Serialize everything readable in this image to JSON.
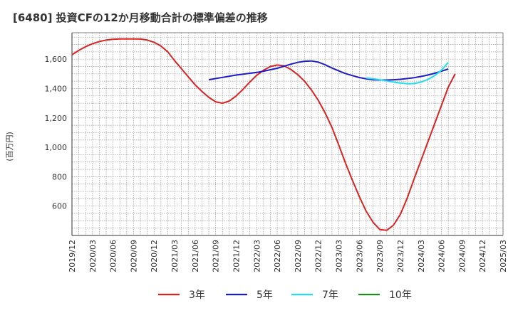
{
  "chart_data": {
    "type": "line",
    "title": "[6480]  投資CFの12か月移動合計の標準偏差の推移",
    "ylabel": "(百万円)",
    "xlabel": "",
    "ylim": [
      400,
      1780
    ],
    "yticks": [
      600,
      800,
      1000,
      1200,
      1400,
      1600
    ],
    "x_start": "2019-12",
    "x_end": "2025-03",
    "x_ticks": [
      "2019/12",
      "2020/03",
      "2020/06",
      "2020/09",
      "2020/12",
      "2021/03",
      "2021/06",
      "2021/09",
      "2021/12",
      "2022/03",
      "2022/06",
      "2022/09",
      "2022/12",
      "2023/03",
      "2023/06",
      "2023/09",
      "2023/12",
      "2024/03",
      "2024/06",
      "2024/09",
      "2024/12",
      "2025/03"
    ],
    "grid": true,
    "legend_position": "bottom",
    "series": [
      {
        "name": "3年",
        "color": "#dd2222",
        "points": [
          [
            "2019-12",
            1630
          ],
          [
            "2020-01",
            1660
          ],
          [
            "2020-02",
            1685
          ],
          [
            "2020-03",
            1705
          ],
          [
            "2020-04",
            1720
          ],
          [
            "2020-05",
            1730
          ],
          [
            "2020-06",
            1735
          ],
          [
            "2020-07",
            1738
          ],
          [
            "2020-08",
            1738
          ],
          [
            "2020-09",
            1738
          ],
          [
            "2020-10",
            1737
          ],
          [
            "2020-11",
            1730
          ],
          [
            "2020-12",
            1715
          ],
          [
            "2021-01",
            1690
          ],
          [
            "2021-02",
            1650
          ],
          [
            "2021-03",
            1590
          ],
          [
            "2021-04",
            1535
          ],
          [
            "2021-05",
            1480
          ],
          [
            "2021-06",
            1425
          ],
          [
            "2021-07",
            1380
          ],
          [
            "2021-08",
            1340
          ],
          [
            "2021-09",
            1310
          ],
          [
            "2021-10",
            1300
          ],
          [
            "2021-11",
            1315
          ],
          [
            "2021-12",
            1350
          ],
          [
            "2022-01",
            1395
          ],
          [
            "2022-02",
            1445
          ],
          [
            "2022-03",
            1490
          ],
          [
            "2022-04",
            1525
          ],
          [
            "2022-05",
            1550
          ],
          [
            "2022-06",
            1560
          ],
          [
            "2022-07",
            1555
          ],
          [
            "2022-08",
            1530
          ],
          [
            "2022-09",
            1495
          ],
          [
            "2022-10",
            1450
          ],
          [
            "2022-11",
            1390
          ],
          [
            "2022-12",
            1320
          ],
          [
            "2023-01",
            1235
          ],
          [
            "2023-02",
            1135
          ],
          [
            "2023-03",
            1015
          ],
          [
            "2023-04",
            890
          ],
          [
            "2023-05",
            775
          ],
          [
            "2023-06",
            665
          ],
          [
            "2023-07",
            565
          ],
          [
            "2023-08",
            490
          ],
          [
            "2023-09",
            440
          ],
          [
            "2023-10",
            435
          ],
          [
            "2023-11",
            470
          ],
          [
            "2023-12",
            545
          ],
          [
            "2024-01",
            655
          ],
          [
            "2024-02",
            785
          ],
          [
            "2024-03",
            910
          ],
          [
            "2024-04",
            1035
          ],
          [
            "2024-05",
            1160
          ],
          [
            "2024-06",
            1285
          ],
          [
            "2024-07",
            1410
          ],
          [
            "2024-08",
            1500
          ]
        ]
      },
      {
        "name": "5年",
        "color": "#1c1cc8",
        "points": [
          [
            "2021-08",
            1460
          ],
          [
            "2021-09",
            1468
          ],
          [
            "2021-10",
            1476
          ],
          [
            "2021-11",
            1484
          ],
          [
            "2021-12",
            1492
          ],
          [
            "2022-01",
            1498
          ],
          [
            "2022-02",
            1504
          ],
          [
            "2022-03",
            1510
          ],
          [
            "2022-04",
            1518
          ],
          [
            "2022-05",
            1528
          ],
          [
            "2022-06",
            1538
          ],
          [
            "2022-07",
            1552
          ],
          [
            "2022-08",
            1566
          ],
          [
            "2022-09",
            1578
          ],
          [
            "2022-10",
            1586
          ],
          [
            "2022-11",
            1588
          ],
          [
            "2022-12",
            1580
          ],
          [
            "2023-01",
            1562
          ],
          [
            "2023-02",
            1540
          ],
          [
            "2023-03",
            1520
          ],
          [
            "2023-04",
            1502
          ],
          [
            "2023-05",
            1488
          ],
          [
            "2023-06",
            1475
          ],
          [
            "2023-07",
            1466
          ],
          [
            "2023-08",
            1460
          ],
          [
            "2023-09",
            1458
          ],
          [
            "2023-10",
            1458
          ],
          [
            "2023-11",
            1460
          ],
          [
            "2023-12",
            1463
          ],
          [
            "2024-01",
            1468
          ],
          [
            "2024-02",
            1474
          ],
          [
            "2024-03",
            1482
          ],
          [
            "2024-04",
            1492
          ],
          [
            "2024-05",
            1504
          ],
          [
            "2024-06",
            1518
          ],
          [
            "2024-07",
            1533
          ]
        ]
      },
      {
        "name": "7年",
        "color": "#22ddee",
        "points": [
          [
            "2023-07",
            1472
          ],
          [
            "2023-08",
            1466
          ],
          [
            "2023-09",
            1460
          ],
          [
            "2023-10",
            1452
          ],
          [
            "2023-11",
            1444
          ],
          [
            "2023-12",
            1437
          ],
          [
            "2024-01",
            1433
          ],
          [
            "2024-02",
            1434
          ],
          [
            "2024-03",
            1444
          ],
          [
            "2024-04",
            1462
          ],
          [
            "2024-05",
            1488
          ],
          [
            "2024-06",
            1525
          ],
          [
            "2024-07",
            1578
          ]
        ]
      },
      {
        "name": "10年",
        "color": "#228822",
        "points": []
      }
    ]
  }
}
